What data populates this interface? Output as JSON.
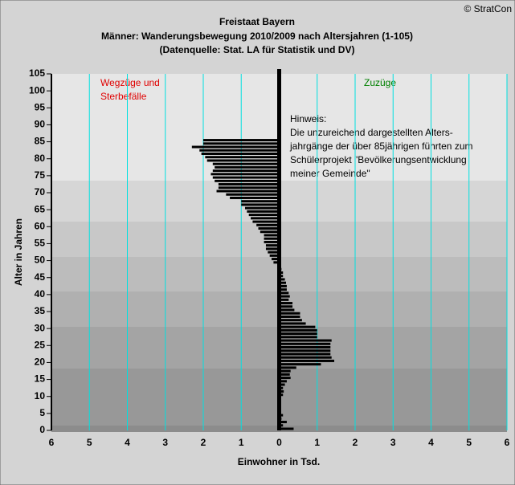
{
  "chart_data": {
    "type": "bar",
    "orientation": "horizontal",
    "title": [
      "Freistaat Bayern",
      "Männer: Wanderungsbewegung 2010/2009 nach Altersjahren (1-105)",
      "(Datenquelle: Stat. LA für Statistik und DV)"
    ],
    "copyright": "© StratCon",
    "left_label": [
      "Wegzüge und",
      "Sterbefälle"
    ],
    "right_label": "Zuzüge",
    "note": [
      "Hinweis:",
      "Die unzureichend dargestellten Alters-",
      "jahrgänge der über 85jährigen führten zum",
      "Schülerprojekt \"Bevölkerungsentwicklung",
      "meiner Gemeinde\""
    ],
    "xlabel": "Einwohner in Tsd.",
    "ylabel": "Alter in Jahren",
    "color": "#000000",
    "grid_color": "#00e0e0",
    "grid": true,
    "ages": [
      0,
      1,
      2,
      3,
      4,
      5,
      6,
      7,
      8,
      9,
      10,
      11,
      12,
      13,
      14,
      15,
      16,
      17,
      18,
      19,
      20,
      21,
      22,
      23,
      24,
      25,
      26,
      27,
      28,
      29,
      30,
      31,
      32,
      33,
      34,
      35,
      36,
      37,
      38,
      39,
      40,
      41,
      42,
      43,
      44,
      45,
      46,
      47,
      48,
      49,
      50,
      51,
      52,
      53,
      54,
      55,
      56,
      57,
      58,
      59,
      60,
      61,
      62,
      63,
      64,
      65,
      66,
      67,
      68,
      69,
      70,
      71,
      72,
      73,
      74,
      75,
      76,
      77,
      78,
      79,
      80,
      81,
      82,
      83,
      84,
      85
    ],
    "values": [
      0.38,
      0.1,
      0.2,
      0.06,
      0.1,
      0.05,
      0.03,
      0.03,
      0.04,
      0.05,
      0.1,
      0.12,
      0.1,
      0.15,
      0.2,
      0.3,
      0.28,
      0.3,
      0.45,
      1.1,
      1.45,
      1.38,
      1.35,
      1.35,
      1.35,
      1.35,
      1.38,
      1.0,
      1.0,
      1.0,
      0.95,
      0.7,
      0.6,
      0.55,
      0.55,
      0.4,
      0.35,
      0.35,
      0.25,
      0.28,
      0.25,
      0.2,
      0.2,
      0.18,
      0.15,
      0.1,
      0.1,
      0.06,
      -0.05,
      -0.15,
      -0.2,
      -0.25,
      -0.3,
      -0.35,
      -0.35,
      -0.4,
      -0.4,
      -0.4,
      -0.5,
      -0.55,
      -0.6,
      -0.7,
      -0.75,
      -0.8,
      -0.85,
      -0.9,
      -1.0,
      -1.0,
      -1.3,
      -1.4,
      -1.65,
      -1.6,
      -1.6,
      -1.7,
      -1.75,
      -1.8,
      -1.75,
      -1.7,
      -1.75,
      -1.9,
      -1.95,
      -2.05,
      -2.1,
      -2.3,
      -2.0,
      -2.0
    ],
    "xlim": [
      -6,
      6
    ],
    "xticks": [
      {
        "value": -6,
        "label": "6"
      },
      {
        "value": -5,
        "label": "5"
      },
      {
        "value": -4,
        "label": "4"
      },
      {
        "value": -3,
        "label": "3"
      },
      {
        "value": -2,
        "label": "2"
      },
      {
        "value": -1,
        "label": "1"
      },
      0,
      1,
      2,
      3,
      4,
      5,
      6
    ],
    "ylim": [
      0,
      105
    ],
    "yticks": [
      0,
      5,
      10,
      15,
      20,
      25,
      30,
      35,
      40,
      45,
      50,
      55,
      60,
      65,
      70,
      75,
      80,
      85,
      90,
      95,
      100,
      105
    ]
  }
}
